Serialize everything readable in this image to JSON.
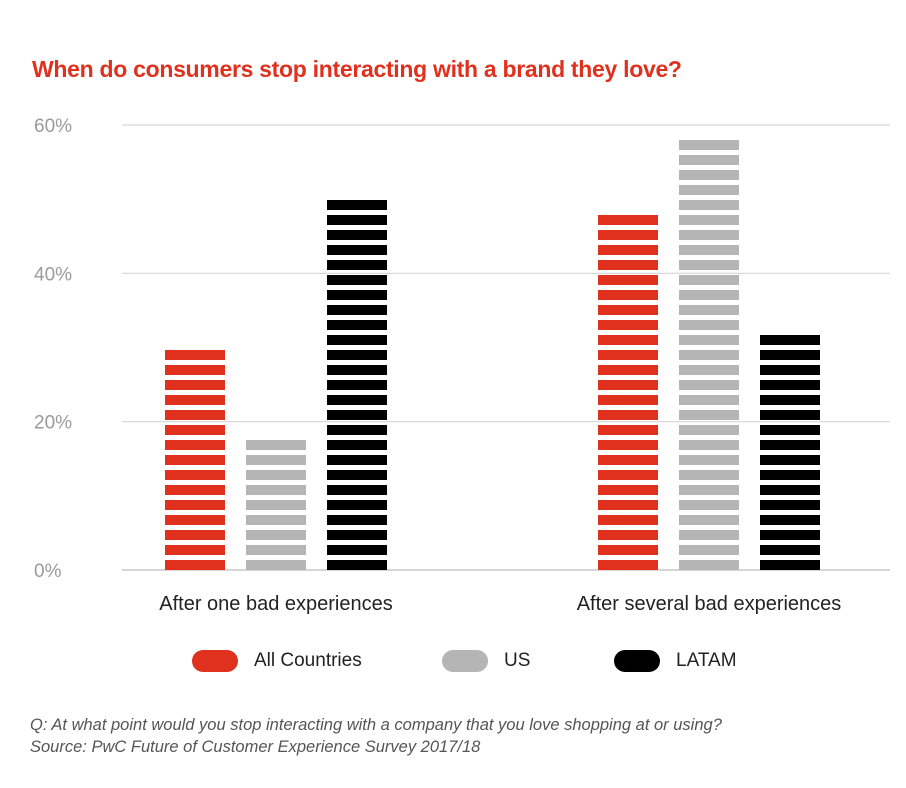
{
  "chart_data": {
    "type": "bar",
    "title": "When do consumers stop interacting with a brand they love?",
    "categories": [
      "After one bad experiences",
      "After several bad experiences"
    ],
    "series": [
      {
        "name": "All Countries",
        "color": "#e0301e",
        "values": [
          30,
          48
        ]
      },
      {
        "name": "US",
        "color": "#b5b5b5",
        "values": [
          18,
          58
        ]
      },
      {
        "name": "LATAM",
        "color": "#000000",
        "values": [
          50,
          32
        ]
      }
    ],
    "yticks": [
      0,
      20,
      40,
      60
    ],
    "ytick_labels": [
      "0%",
      "20%",
      "40%",
      "60%"
    ],
    "ylim": [
      0,
      60
    ],
    "xlabel": "",
    "ylabel": "",
    "grid": true,
    "legend": "bottom-center",
    "bar_style": "striped"
  },
  "footnote": {
    "question": "Q: At what point would you stop interacting with a company that you love shopping at or using?",
    "source": "Source: PwC Future of Customer Experience Survey 2017/18"
  }
}
